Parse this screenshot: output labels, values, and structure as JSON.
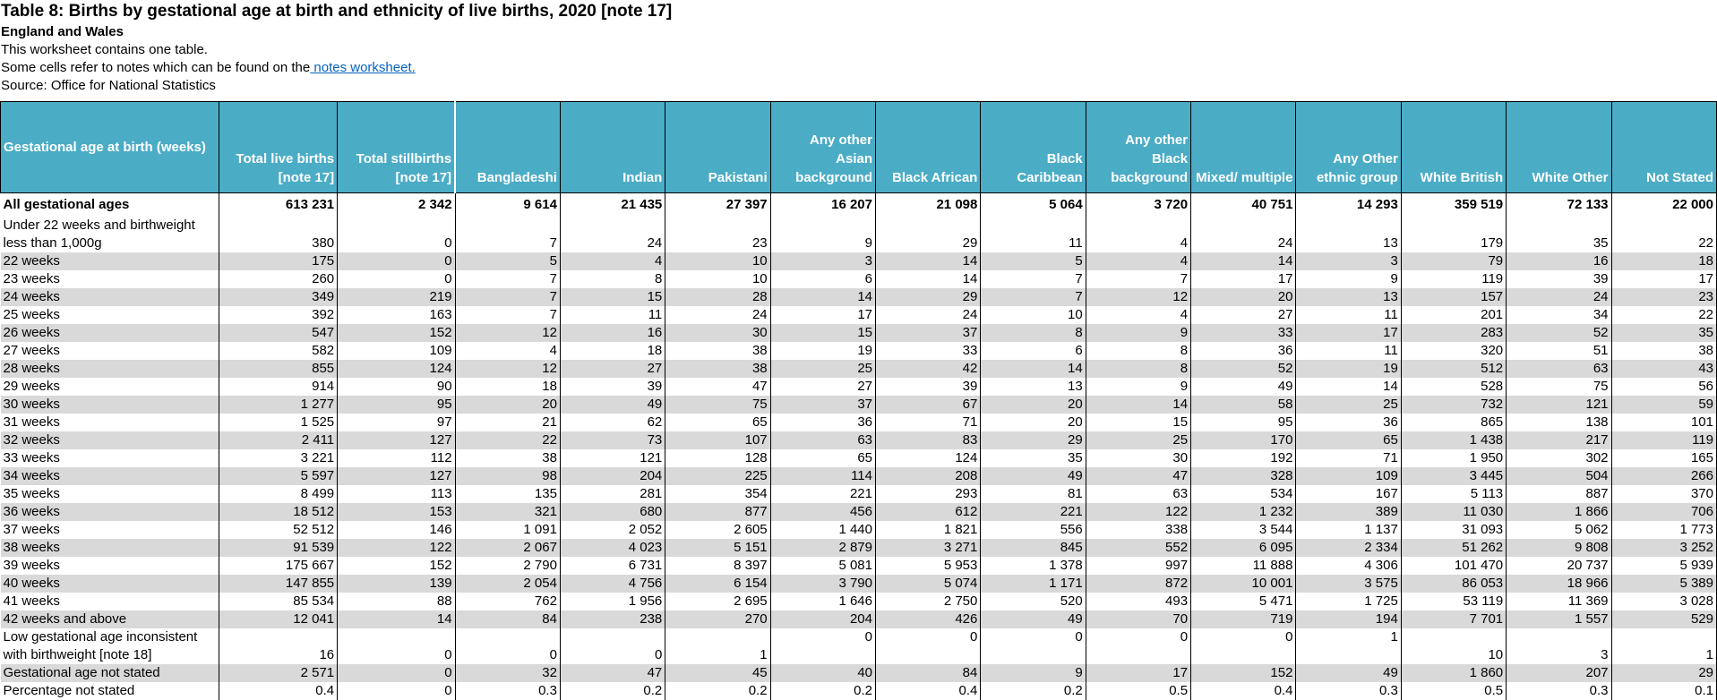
{
  "header": {
    "title": "Table 8: Births by gestational age at birth and ethnicity of live births, 2020 [note 17]",
    "subtitle": "England and Wales",
    "line1": "This worksheet contains one table.",
    "line2_text": "Some cells refer to notes which can be found on the",
    "line2_link": " notes worksheet.",
    "line3": "Source: Office for National Statistics"
  },
  "table": {
    "columns": [
      "Gestational age at birth (weeks)",
      "Total live births [note 17]",
      "Total stillbirths [note 17]",
      "Bangladeshi",
      "Indian",
      "Pakistani",
      "Any other Asian background",
      "Black African",
      "Black Caribbean",
      "Any other Black background",
      "Mixed/ multiple",
      "Any Other ethnic group",
      "White British",
      "White Other",
      "Not Stated"
    ],
    "rows": [
      [
        "All gestational ages",
        "613 231",
        "2 342",
        "9 614",
        "21 435",
        "27 397",
        "16 207",
        "21 098",
        "5 064",
        "3 720",
        "40 751",
        "14 293",
        "359 519",
        "72 133",
        "22 000"
      ],
      [
        "Under 22 weeks and birthweight less than 1,000g",
        "380",
        "0",
        "7",
        "24",
        "23",
        "9",
        "29",
        "11",
        "4",
        "24",
        "13",
        "179",
        "35",
        "22"
      ],
      [
        "22 weeks",
        "175",
        "0",
        "5",
        "4",
        "10",
        "3",
        "14",
        "5",
        "4",
        "14",
        "3",
        "79",
        "16",
        "18"
      ],
      [
        "23 weeks",
        "260",
        "0",
        "7",
        "8",
        "10",
        "6",
        "14",
        "7",
        "7",
        "17",
        "9",
        "119",
        "39",
        "17"
      ],
      [
        "24 weeks",
        "349",
        "219",
        "7",
        "15",
        "28",
        "14",
        "29",
        "7",
        "12",
        "20",
        "13",
        "157",
        "24",
        "23"
      ],
      [
        "25 weeks",
        "392",
        "163",
        "7",
        "11",
        "24",
        "17",
        "24",
        "10",
        "4",
        "27",
        "11",
        "201",
        "34",
        "22"
      ],
      [
        "26 weeks",
        "547",
        "152",
        "12",
        "16",
        "30",
        "15",
        "37",
        "8",
        "9",
        "33",
        "17",
        "283",
        "52",
        "35"
      ],
      [
        "27 weeks",
        "582",
        "109",
        "4",
        "18",
        "38",
        "19",
        "33",
        "6",
        "8",
        "36",
        "11",
        "320",
        "51",
        "38"
      ],
      [
        "28 weeks",
        "855",
        "124",
        "12",
        "27",
        "38",
        "25",
        "42",
        "14",
        "8",
        "52",
        "19",
        "512",
        "63",
        "43"
      ],
      [
        "29 weeks",
        "914",
        "90",
        "18",
        "39",
        "47",
        "27",
        "39",
        "13",
        "9",
        "49",
        "14",
        "528",
        "75",
        "56"
      ],
      [
        "30 weeks",
        "1 277",
        "95",
        "20",
        "49",
        "75",
        "37",
        "67",
        "20",
        "14",
        "58",
        "25",
        "732",
        "121",
        "59"
      ],
      [
        "31 weeks",
        "1 525",
        "97",
        "21",
        "62",
        "65",
        "36",
        "71",
        "20",
        "15",
        "95",
        "36",
        "865",
        "138",
        "101"
      ],
      [
        "32 weeks",
        "2 411",
        "127",
        "22",
        "73",
        "107",
        "63",
        "83",
        "29",
        "25",
        "170",
        "65",
        "1 438",
        "217",
        "119"
      ],
      [
        "33 weeks",
        "3 221",
        "112",
        "38",
        "121",
        "128",
        "65",
        "124",
        "35",
        "30",
        "192",
        "71",
        "1 950",
        "302",
        "165"
      ],
      [
        "34 weeks",
        "5 597",
        "127",
        "98",
        "204",
        "225",
        "114",
        "208",
        "49",
        "47",
        "328",
        "109",
        "3 445",
        "504",
        "266"
      ],
      [
        "35 weeks",
        "8 499",
        "113",
        "135",
        "281",
        "354",
        "221",
        "293",
        "81",
        "63",
        "534",
        "167",
        "5 113",
        "887",
        "370"
      ],
      [
        "36 weeks",
        "18 512",
        "153",
        "321",
        "680",
        "877",
        "456",
        "612",
        "221",
        "122",
        "1 232",
        "389",
        "11 030",
        "1 866",
        "706"
      ],
      [
        "37 weeks",
        "52 512",
        "146",
        "1 091",
        "2 052",
        "2 605",
        "1 440",
        "1 821",
        "556",
        "338",
        "3 544",
        "1 137",
        "31 093",
        "5 062",
        "1 773"
      ],
      [
        "38 weeks",
        "91 539",
        "122",
        "2 067",
        "4 023",
        "5 151",
        "2 879",
        "3 271",
        "845",
        "552",
        "6 095",
        "2 334",
        "51 262",
        "9 808",
        "3 252"
      ],
      [
        "39 weeks",
        "175 667",
        "152",
        "2 790",
        "6 731",
        "8 397",
        "5 081",
        "5 953",
        "1 378",
        "997",
        "11 888",
        "4 306",
        "101 470",
        "20 737",
        "5 939"
      ],
      [
        "40 weeks",
        "147 855",
        "139",
        "2 054",
        "4 756",
        "6 154",
        "3 790",
        "5 074",
        "1 171",
        "872",
        "10 001",
        "3 575",
        "86 053",
        "18 966",
        "5 389"
      ],
      [
        "41 weeks",
        "85 534",
        "88",
        "762",
        "1 956",
        "2 695",
        "1 646",
        "2 750",
        "520",
        "493",
        "5 471",
        "1 725",
        "53 119",
        "11 369",
        "3 028"
      ],
      [
        "42 weeks and above",
        "12 041",
        "14",
        "84",
        "238",
        "270",
        "204",
        "426",
        "49",
        "70",
        "719",
        "194",
        "7 701",
        "1 557",
        "529"
      ],
      [
        "Low gestational age inconsistent with birthweight [note 18]",
        "16",
        "0",
        "0",
        "0",
        "1",
        "0",
        "0",
        "0",
        "0",
        "0",
        "1",
        "10",
        "3",
        "1"
      ],
      [
        "Gestational age not stated",
        "2 571",
        "0",
        "32",
        "47",
        "45",
        "40",
        "84",
        "9",
        "17",
        "152",
        "49",
        "1 860",
        "207",
        "29"
      ],
      [
        "Percentage not stated",
        "0.4",
        "0",
        "0.3",
        "0.2",
        "0.2",
        "0.2",
        "0.4",
        "0.2",
        "0.5",
        "0.4",
        "0.3",
        "0.5",
        "0.3",
        "0.1"
      ]
    ]
  }
}
